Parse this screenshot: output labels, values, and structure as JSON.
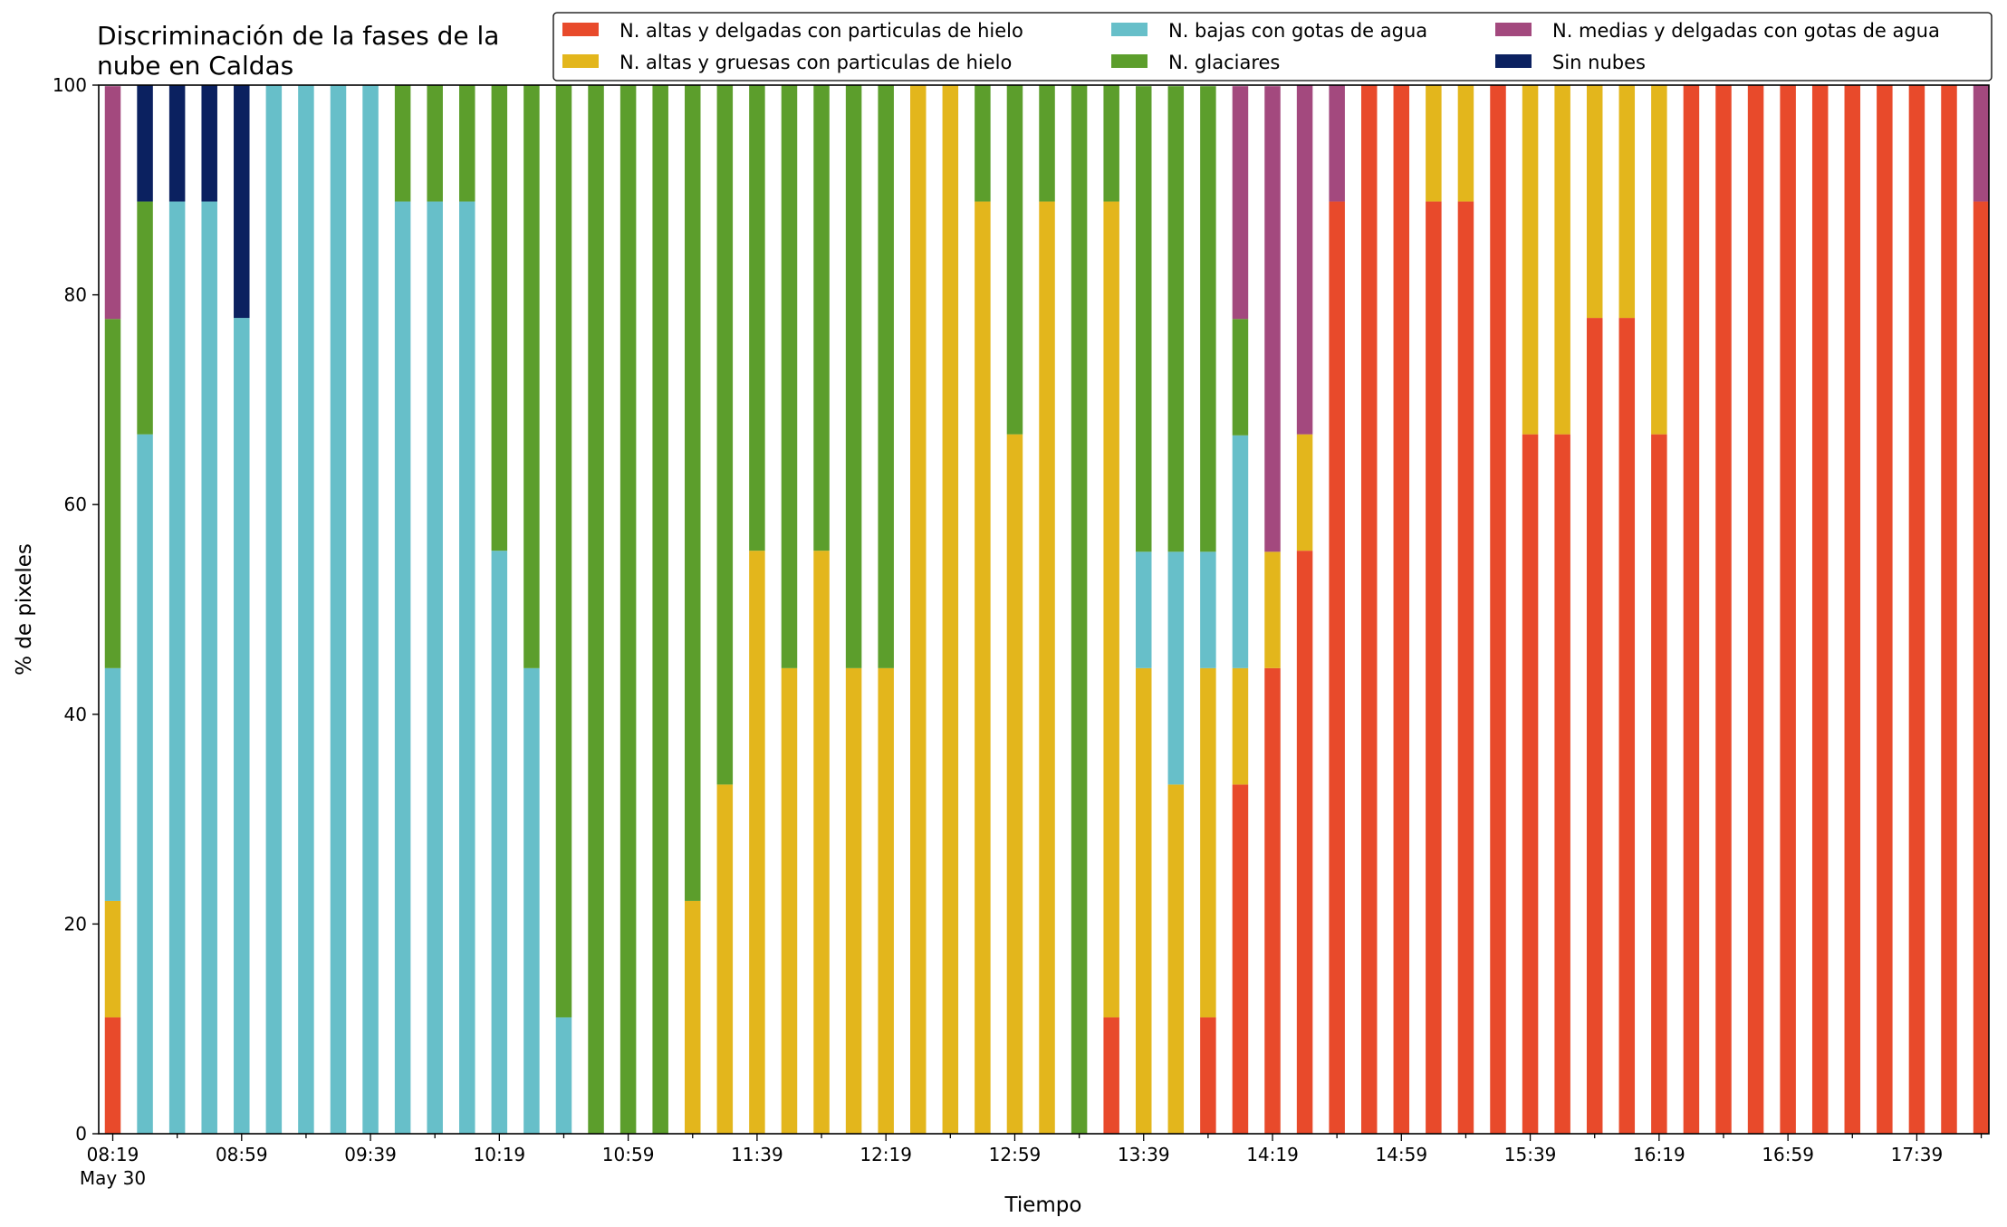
{
  "chart_data": {
    "type": "bar",
    "stacked": true,
    "title_lines": [
      "Discriminación de la fases de la",
      "nube en Caldas"
    ],
    "xlabel": "Tiempo",
    "ylabel": "% de pixeles",
    "ylim": [
      0,
      100
    ],
    "yticks": [
      0,
      20,
      40,
      60,
      80,
      100
    ],
    "x_start": "08:19",
    "x_step_minutes": 10,
    "x_tick_labels": [
      "08:19",
      "08:59",
      "09:39",
      "10:19",
      "10:59",
      "11:39",
      "12:19",
      "12:59",
      "13:39",
      "14:19",
      "14:59",
      "15:39",
      "16:19",
      "16:59",
      "17:39"
    ],
    "x_date_label": "May 30",
    "grid": false,
    "legend_position": "top-right",
    "series": [
      {
        "name": "N. altas y delgadas con particulas de hielo",
        "color": "#e84a2b",
        "values": [
          11.1,
          0,
          0,
          0,
          0,
          0,
          0,
          0,
          0,
          0,
          0,
          0,
          0,
          0,
          0,
          0,
          0,
          0,
          0,
          0,
          0,
          0,
          0,
          0,
          0,
          0,
          0,
          0,
          0,
          0,
          0,
          11.1,
          0,
          0,
          11.1,
          33.3,
          44.4,
          55.6,
          88.9,
          100,
          100,
          88.9,
          88.9,
          100,
          66.7,
          66.7,
          77.8,
          77.8,
          66.7,
          100,
          100,
          100,
          100,
          100,
          100,
          100,
          100,
          100,
          88.9
        ]
      },
      {
        "name": "N. altas y gruesas con particulas de hielo",
        "color": "#e3b61c",
        "values": [
          11.1,
          0,
          0,
          0,
          0,
          0,
          0,
          0,
          0,
          0,
          0,
          0,
          0,
          0,
          0,
          0,
          0,
          0,
          22.2,
          33.3,
          55.6,
          44.4,
          55.6,
          44.4,
          44.4,
          100,
          100,
          88.9,
          66.7,
          88.9,
          0,
          77.8,
          44.4,
          33.3,
          33.3,
          11.1,
          11.1,
          11.1,
          0,
          0,
          0,
          11.1,
          11.1,
          0,
          33.3,
          33.3,
          22.2,
          22.2,
          33.3,
          0,
          0,
          0,
          0,
          0,
          0,
          0,
          0,
          0,
          0
        ]
      },
      {
        "name": "N. bajas con gotas de agua",
        "color": "#67bfc9",
        "values": [
          22.2,
          66.7,
          88.9,
          88.9,
          77.8,
          100,
          100,
          100,
          100,
          88.9,
          88.9,
          88.9,
          55.6,
          44.4,
          11.1,
          0,
          0,
          0,
          0,
          0,
          0,
          0,
          0,
          0,
          0,
          0,
          0,
          0,
          0,
          0,
          0,
          0,
          11.1,
          22.2,
          11.1,
          22.2,
          0,
          0,
          0,
          0,
          0,
          0,
          0,
          0,
          0,
          0,
          0,
          0,
          0,
          0,
          0,
          0,
          0,
          0,
          0,
          0,
          0,
          0,
          0
        ]
      },
      {
        "name": "N. glaciares",
        "color": "#5c9e2c",
        "values": [
          33.3,
          22.2,
          0,
          0,
          0,
          0,
          0,
          0,
          0,
          11.1,
          11.1,
          11.1,
          44.4,
          55.6,
          88.9,
          100,
          100,
          100,
          77.8,
          66.7,
          44.4,
          55.6,
          44.4,
          55.6,
          55.6,
          0,
          0,
          11.1,
          33.3,
          11.1,
          100,
          11.1,
          44.4,
          44.4,
          44.4,
          11.1,
          0,
          0,
          0,
          0,
          0,
          0,
          0,
          0,
          0,
          0,
          0,
          0,
          0,
          0,
          0,
          0,
          0,
          0,
          0,
          0,
          0,
          0,
          0
        ]
      },
      {
        "name": "N. medias y delgadas con gotas de agua",
        "color": "#a3497e",
        "values": [
          22.2,
          0,
          0,
          0,
          0,
          0,
          0,
          0,
          0,
          0,
          0,
          0,
          0,
          0,
          0,
          0,
          0,
          0,
          0,
          0,
          0,
          0,
          0,
          0,
          0,
          0,
          0,
          0,
          0,
          0,
          0,
          0,
          0,
          0,
          0,
          22.2,
          44.4,
          33.3,
          11.1,
          0,
          0,
          0,
          0,
          0,
          0,
          0,
          0,
          0,
          0,
          0,
          0,
          0,
          0,
          0,
          0,
          0,
          0,
          0,
          11.1
        ]
      },
      {
        "name": "Sin nubes",
        "color": "#0b2160",
        "values": [
          0,
          11.1,
          11.1,
          11.1,
          22.2,
          0,
          0,
          0,
          0,
          0,
          0,
          0,
          0,
          0,
          0,
          0,
          0,
          0,
          0,
          0,
          0,
          0,
          0,
          0,
          0,
          0,
          0,
          0,
          0,
          0,
          0,
          0,
          0,
          0,
          0,
          0,
          0,
          0,
          0,
          0,
          0,
          0,
          0,
          0,
          0,
          0,
          0,
          0,
          0,
          0,
          0,
          0,
          0,
          0,
          0,
          0,
          0,
          0,
          0
        ]
      }
    ]
  }
}
